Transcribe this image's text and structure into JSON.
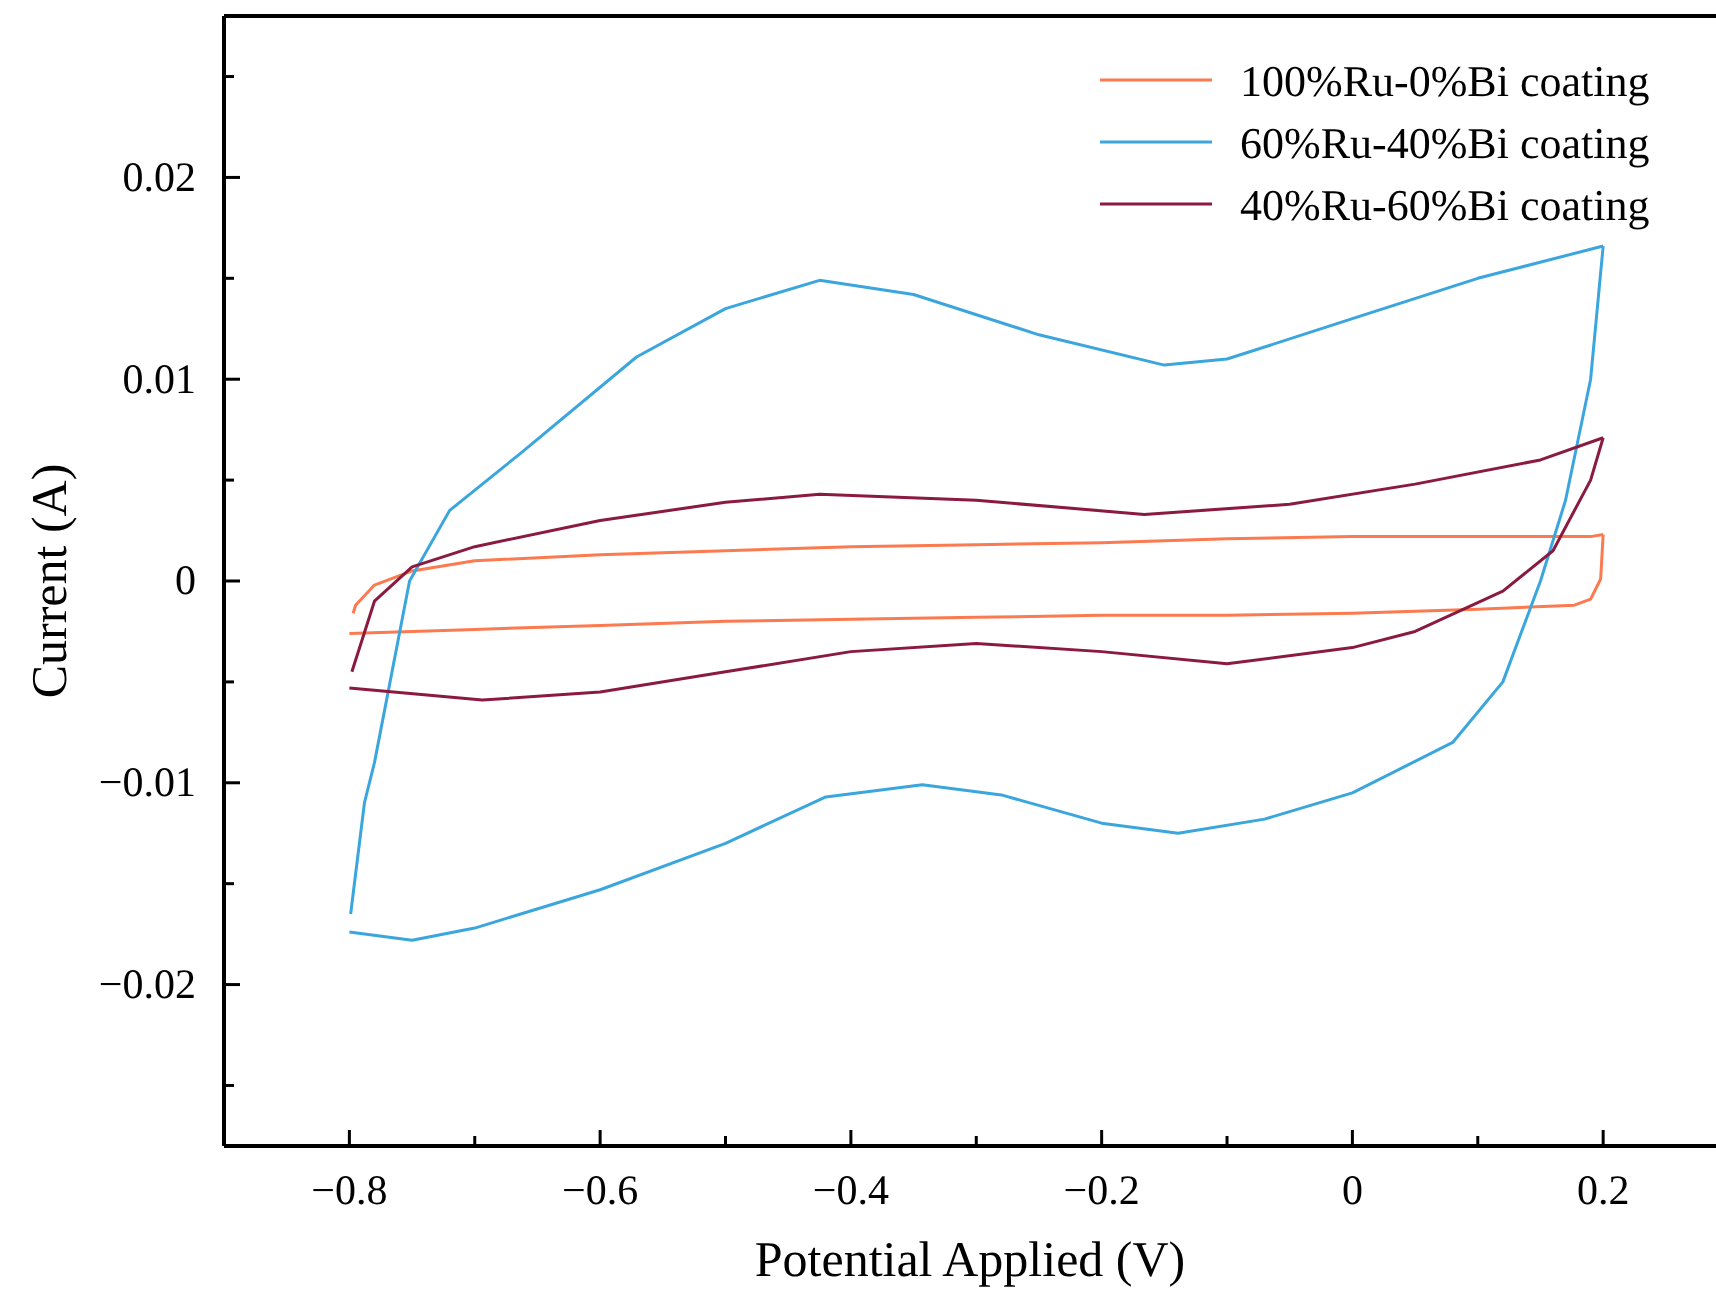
{
  "chart_data": {
    "type": "line",
    "xlabel": "Potential Applied (V)",
    "ylabel": "Current (A)",
    "xlim": [
      -0.9,
      0.29
    ],
    "ylim": [
      -0.028,
      0.028
    ],
    "xticks": [
      -0.8,
      {
        "value": -0.7,
        "label": null
      },
      -0.6,
      {
        "value": -0.5,
        "label": null
      },
      -0.4,
      {
        "value": -0.3,
        "label": null
      },
      -0.2,
      {
        "value": -0.1,
        "label": null
      },
      0,
      {
        "value": 0.1,
        "label": null
      },
      0.2
    ],
    "yticks": [
      {
        "value": -0.025,
        "label": null
      },
      -0.02,
      {
        "value": -0.015,
        "label": null
      },
      -0.01,
      {
        "value": -0.005,
        "label": null
      },
      0,
      {
        "value": 0.005,
        "label": null
      },
      0.01,
      {
        "value": 0.015,
        "label": null
      },
      0.02,
      {
        "value": 0.025,
        "label": null
      }
    ],
    "grid": false,
    "legend": "top right",
    "marker": "none",
    "line_style": "solid",
    "series": [
      {
        "name": "100%Ru-0%Bi coating",
        "color": "#fb7a4f",
        "x": [
          -0.797,
          -0.795,
          -0.78,
          -0.75,
          -0.7,
          -0.6,
          -0.5,
          -0.4,
          -0.3,
          -0.2,
          -0.1,
          0,
          0.1,
          0.19,
          0.2
        ],
        "values": [
          -0.0016,
          -0.0012,
          -0.0002,
          0.0005,
          0.001,
          0.0013,
          0.0015,
          0.0017,
          0.0018,
          0.0019,
          0.0021,
          0.0022,
          0.0022,
          0.0022,
          0.0023
        ]
      },
      {
        "color": "#fb7a4f",
        "x": [
          0.2,
          0.198,
          0.19,
          0.177,
          0.1,
          0,
          -0.1,
          -0.2,
          -0.3,
          -0.4,
          -0.5,
          -0.6,
          -0.7,
          -0.8
        ],
        "values": [
          0.0023,
          0.0001,
          -0.0009,
          -0.0012,
          -0.0014,
          -0.0016,
          -0.0017,
          -0.0017,
          -0.0018,
          -0.0019,
          -0.002,
          -0.0022,
          -0.0024,
          -0.0026
        ]
      },
      {
        "name": "60%Ru-40%Bi coating",
        "color": "#3aa6dd",
        "x": [
          -0.799,
          -0.788,
          -0.78,
          -0.752,
          -0.72,
          -0.664,
          -0.571,
          -0.5,
          -0.425,
          -0.35,
          -0.25,
          -0.15,
          -0.1,
          0,
          0.1,
          0.2
        ],
        "values": [
          -0.0165,
          -0.011,
          -0.009,
          0,
          0.0035,
          0.0063,
          0.0111,
          0.0135,
          0.0149,
          0.0142,
          0.0122,
          0.0107,
          0.011,
          0.013,
          0.015,
          0.0166
        ]
      },
      {
        "color": "#3aa6dd",
        "x": [
          0.2,
          0.19,
          0.17,
          0.15,
          0.12,
          0.08,
          0,
          -0.07,
          -0.139,
          -0.2,
          -0.28,
          -0.343,
          -0.42,
          -0.5,
          -0.6,
          -0.7,
          -0.75,
          -0.8
        ],
        "values": [
          0.0166,
          0.01,
          0.004,
          0,
          -0.005,
          -0.008,
          -0.0105,
          -0.0118,
          -0.0125,
          -0.012,
          -0.0106,
          -0.0101,
          -0.0107,
          -0.013,
          -0.0153,
          -0.0172,
          -0.0178,
          -0.0174
        ]
      },
      {
        "name": "40%Ru-60%Bi coating",
        "color": "#8b1a3f",
        "x": [
          -0.798,
          -0.78,
          -0.75,
          -0.7,
          -0.6,
          -0.5,
          -0.425,
          -0.3,
          -0.166,
          -0.05,
          0.05,
          0.15,
          0.2
        ],
        "values": [
          -0.0045,
          -0.001,
          0.0007,
          0.0017,
          0.003,
          0.0039,
          0.0043,
          0.004,
          0.0033,
          0.0038,
          0.0048,
          0.006,
          0.0071
        ]
      },
      {
        "color": "#8b1a3f",
        "x": [
          0.2,
          0.19,
          0.16,
          0.12,
          0.05,
          0,
          -0.1,
          -0.2,
          -0.3,
          -0.4,
          -0.5,
          -0.6,
          -0.694,
          -0.8
        ],
        "values": [
          0.0071,
          0.005,
          0.0015,
          -0.0005,
          -0.0025,
          -0.0033,
          -0.0041,
          -0.0035,
          -0.0031,
          -0.0035,
          -0.0045,
          -0.0055,
          -0.0059,
          -0.0053
        ]
      }
    ]
  }
}
